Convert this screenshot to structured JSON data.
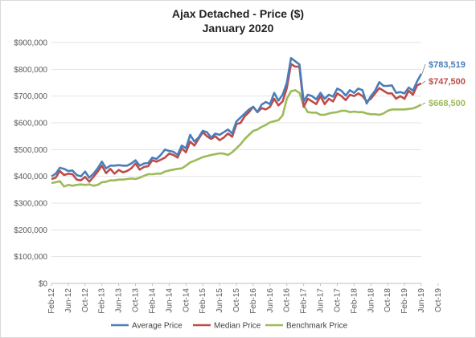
{
  "chart_data": {
    "type": "line",
    "title": "Ajax Detached - Price ($)",
    "subtitle": "January 2020",
    "ylim": [
      0,
      900000
    ],
    "y_ticks": [
      "$0",
      "$100,000",
      "$200,000",
      "$300,000",
      "$400,000",
      "$500,000",
      "$600,000",
      "$700,000",
      "$800,000",
      "$900,000"
    ],
    "x_tick_labels": [
      "Feb-12",
      "Jun-12",
      "Oct-12",
      "Feb-13",
      "Jun-13",
      "Oct-13",
      "Feb-14",
      "Jun-14",
      "Oct-14",
      "Feb-15",
      "Jun-15",
      "Oct-15",
      "Feb-16",
      "Jun-16",
      "Oct-16",
      "Feb-17",
      "Jun-17",
      "Oct-17",
      "Feb-18",
      "Jun-18",
      "Oct-18",
      "Feb-19",
      "Jun-19",
      "Oct-19"
    ],
    "grid": true,
    "legend_position": "bottom",
    "series": [
      {
        "name": "Average Price",
        "color": "#4a7ebb",
        "end_label": "$783,519",
        "values": [
          400000,
          410000,
          432000,
          428000,
          420000,
          422000,
          405000,
          400000,
          418000,
          395000,
          410000,
          430000,
          455000,
          430000,
          440000,
          440000,
          442000,
          440000,
          440000,
          448000,
          460000,
          440000,
          448000,
          450000,
          470000,
          465000,
          480000,
          500000,
          495000,
          492000,
          480000,
          515000,
          505000,
          555000,
          530000,
          545000,
          570000,
          565000,
          545000,
          560000,
          555000,
          565000,
          575000,
          560000,
          605000,
          620000,
          635000,
          650000,
          660000,
          640000,
          668000,
          678000,
          670000,
          712000,
          683000,
          705000,
          750000,
          842000,
          830000,
          818000,
          680000,
          705000,
          700000,
          688000,
          712000,
          690000,
          705000,
          698000,
          728000,
          720000,
          702000,
          722000,
          712000,
          728000,
          722000,
          672000,
          700000,
          720000,
          752000,
          738000,
          738000,
          740000,
          712000,
          715000,
          710000,
          732000,
          720000,
          755000,
          783519
        ]
      },
      {
        "name": "Median Price",
        "color": "#be4b48",
        "end_label": "$747,500",
        "values": [
          390000,
          395000,
          420000,
          405000,
          410000,
          408000,
          388000,
          385000,
          398000,
          380000,
          398000,
          418000,
          440000,
          412000,
          428000,
          410000,
          424000,
          415000,
          420000,
          430000,
          448000,
          425000,
          435000,
          438000,
          460000,
          455000,
          462000,
          470000,
          485000,
          480000,
          470000,
          505000,
          490000,
          530000,
          515000,
          540000,
          565000,
          550000,
          540000,
          550000,
          535000,
          545000,
          560000,
          548000,
          595000,
          600000,
          625000,
          640000,
          660000,
          640000,
          655000,
          650000,
          660000,
          690000,
          665000,
          680000,
          730000,
          820000,
          810000,
          810000,
          660000,
          690000,
          680000,
          670000,
          700000,
          670000,
          690000,
          680000,
          710000,
          700000,
          685000,
          705000,
          700000,
          710000,
          700000,
          680000,
          690000,
          710000,
          730000,
          720000,
          710000,
          710000,
          690000,
          700000,
          690000,
          720000,
          705000,
          740000,
          747500
        ]
      },
      {
        "name": "Benchmark Price",
        "color": "#9bbb59",
        "end_label": "$668,500",
        "values": [
          375000,
          378000,
          382000,
          362000,
          368000,
          365000,
          368000,
          370000,
          368000,
          370000,
          365000,
          368000,
          378000,
          380000,
          385000,
          385000,
          388000,
          388000,
          390000,
          392000,
          390000,
          395000,
          402000,
          408000,
          408000,
          410000,
          410000,
          418000,
          422000,
          425000,
          428000,
          430000,
          440000,
          452000,
          458000,
          465000,
          472000,
          476000,
          480000,
          483000,
          486000,
          485000,
          480000,
          490000,
          505000,
          520000,
          540000,
          555000,
          570000,
          575000,
          585000,
          592000,
          602000,
          606000,
          610000,
          628000,
          690000,
          718000,
          722000,
          712000,
          665000,
          640000,
          638000,
          638000,
          630000,
          630000,
          635000,
          638000,
          640000,
          645000,
          645000,
          640000,
          642000,
          640000,
          640000,
          635000,
          632000,
          632000,
          630000,
          635000,
          645000,
          650000,
          650000,
          650000,
          650000,
          652000,
          654000,
          660000,
          668500
        ]
      }
    ]
  }
}
